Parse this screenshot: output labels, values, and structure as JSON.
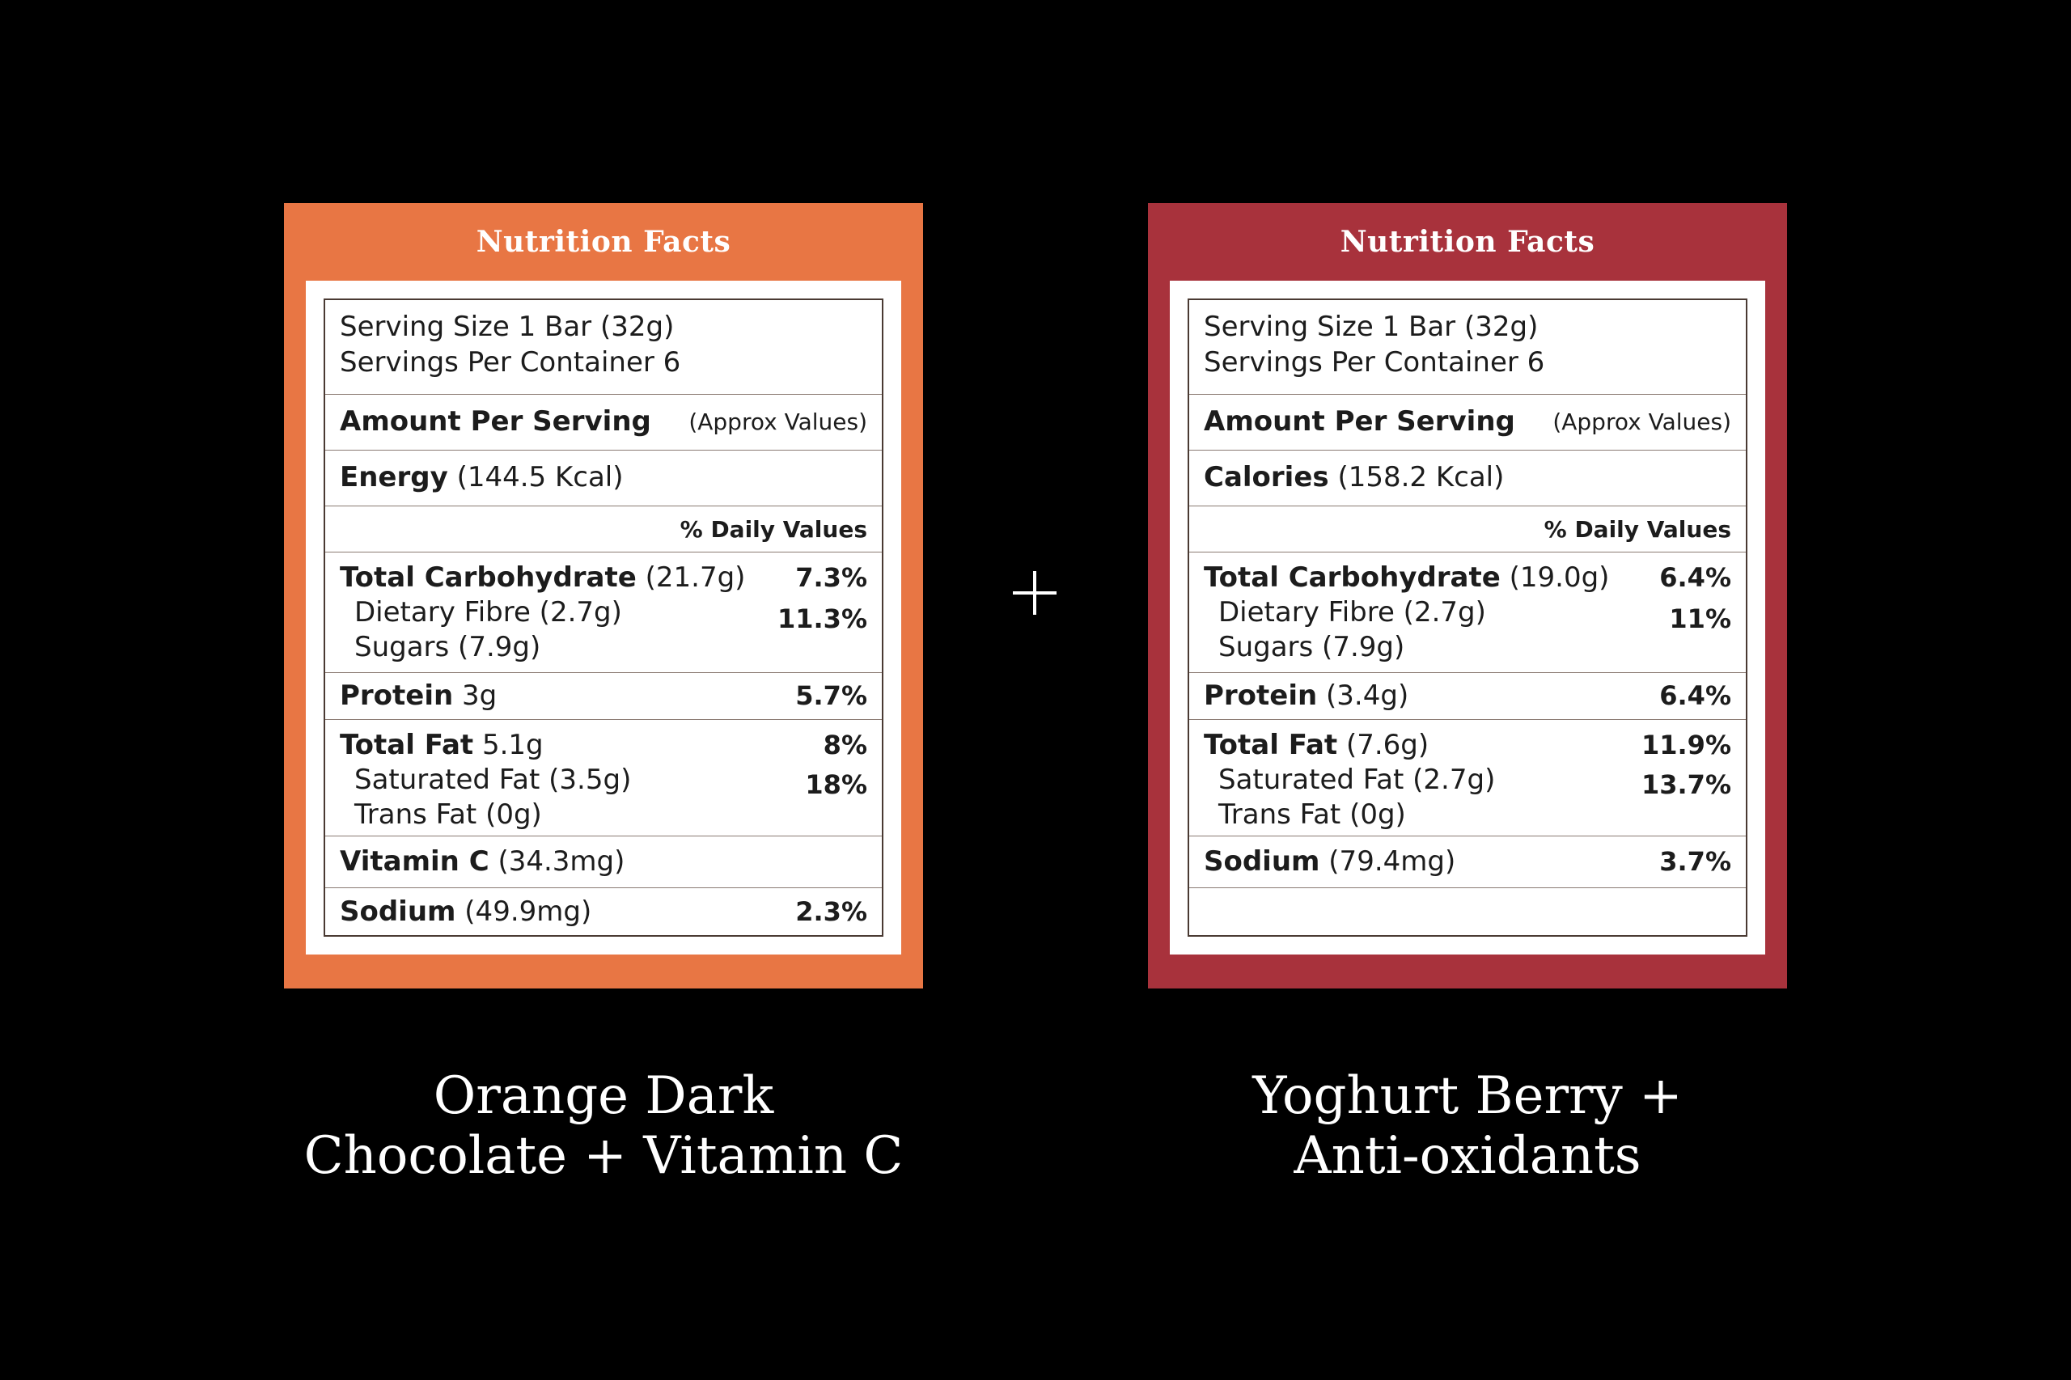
{
  "colors": {
    "background": "#000000",
    "left_panel": "#e87644",
    "right_panel": "#a8323c"
  },
  "left": {
    "title": "Nutrition Facts",
    "serving_size": "Serving Size 1 Bar (32g)",
    "servings_per_container": "Servings Per Container 6",
    "amount_per_serving": "Amount Per Serving",
    "approx_values": "(Approx Values)",
    "energy_label": "Energy",
    "energy_value": "(144.5 Kcal)",
    "daily_values_header": "% Daily Values",
    "carb_label": "Total Carbohydrate",
    "carb_value": "(21.7g)",
    "carb_pct": "7.3%",
    "fibre": "Dietary Fibre (2.7g)",
    "fibre_pct": "11.3%",
    "sugars": "Sugars (7.9g)",
    "protein_label": "Protein",
    "protein_value": "3g",
    "protein_pct": "5.7%",
    "fat_label": "Total Fat",
    "fat_value": "5.1g",
    "fat_pct": "8%",
    "sat_fat": "Saturated Fat (3.5g)",
    "sat_fat_pct": "18%",
    "trans_fat": "Trans Fat (0g)",
    "vitc_label": "Vitamin C",
    "vitc_value": "(34.3mg)",
    "sodium_label": "Sodium",
    "sodium_value": "(49.9mg)",
    "sodium_pct": "2.3%",
    "caption_line1": "Orange Dark",
    "caption_line2": "Chocolate + Vitamin C"
  },
  "right": {
    "title": "Nutrition Facts",
    "serving_size": "Serving Size 1 Bar (32g)",
    "servings_per_container": "Servings Per Container 6",
    "amount_per_serving": "Amount Per Serving",
    "approx_values": "(Approx Values)",
    "energy_label": "Calories",
    "energy_value": "(158.2 Kcal)",
    "daily_values_header": "% Daily Values",
    "carb_label": "Total Carbohydrate",
    "carb_value": "(19.0g)",
    "carb_pct": "6.4%",
    "fibre": "Dietary Fibre (2.7g)",
    "fibre_pct": "11%",
    "sugars": "Sugars (7.9g)",
    "protein_label": "Protein",
    "protein_value": "(3.4g)",
    "protein_pct": "6.4%",
    "fat_label": "Total Fat",
    "fat_value": "(7.6g)",
    "fat_pct": "11.9%",
    "sat_fat": "Saturated Fat (2.7g)",
    "sat_fat_pct": "13.7%",
    "trans_fat": "Trans Fat (0g)",
    "sodium_label": "Sodium",
    "sodium_value": "(79.4mg)",
    "sodium_pct": "3.7%",
    "caption_line1": "Yoghurt Berry +",
    "caption_line2": "Anti-oxidants"
  },
  "plus_icon": "plus-icon"
}
